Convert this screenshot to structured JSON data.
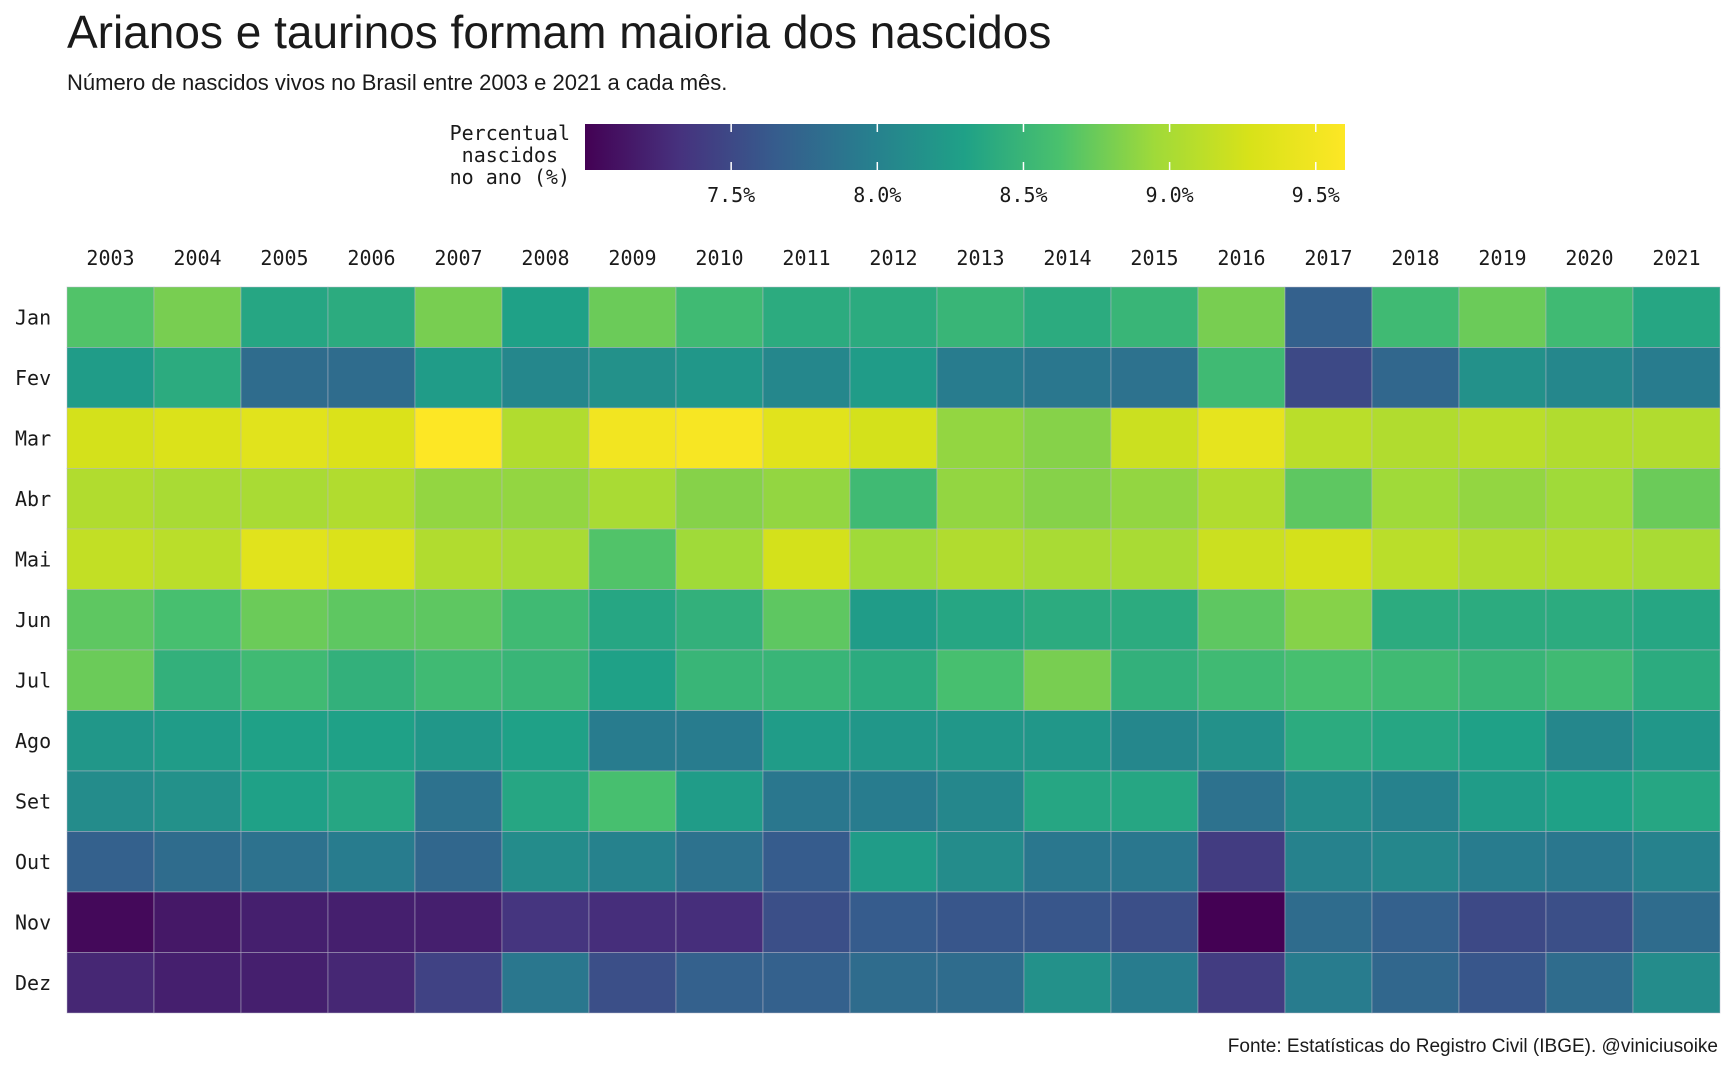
{
  "chart_data": {
    "type": "heatmap",
    "title": "Arianos e taurinos formam maioria dos nascidos",
    "subtitle": "Número de nascidos vivos no Brasil entre 2003 e 2021 a cada mês.",
    "caption": "Fonte: Estatísticas do Registro Civil (IBGE). @viniciusoike",
    "legend": {
      "title_lines": [
        "Percentual",
        "nascidos",
        "no ano (%)"
      ],
      "min": 7.0,
      "max": 9.6,
      "ticks": [
        7.5,
        8.0,
        8.5,
        9.0,
        9.5
      ],
      "tick_labels": [
        "7.5%",
        "8.0%",
        "8.5%",
        "9.0%",
        "9.5%"
      ],
      "placement": "top"
    },
    "colormap": "viridis",
    "x": [
      "2003",
      "2004",
      "2005",
      "2006",
      "2007",
      "2008",
      "2009",
      "2010",
      "2011",
      "2012",
      "2013",
      "2014",
      "2015",
      "2016",
      "2017",
      "2018",
      "2019",
      "2020",
      "2021"
    ],
    "y": [
      "Jan",
      "Fev",
      "Mar",
      "Abr",
      "Mai",
      "Jun",
      "Jul",
      "Ago",
      "Set",
      "Out",
      "Nov",
      "Dez"
    ],
    "values": [
      [
        8.65,
        8.8,
        8.35,
        8.4,
        8.8,
        8.3,
        8.75,
        8.55,
        8.4,
        8.4,
        8.5,
        8.4,
        8.5,
        8.8,
        7.7,
        8.55,
        8.75,
        8.55,
        8.35
      ],
      [
        8.25,
        8.4,
        7.8,
        7.8,
        8.25,
        8.05,
        8.15,
        8.2,
        8.05,
        8.25,
        7.95,
        7.9,
        7.85,
        8.55,
        7.5,
        7.75,
        8.15,
        8.05,
        7.95
      ],
      [
        9.25,
        9.3,
        9.35,
        9.3,
        9.6,
        9.05,
        9.5,
        9.55,
        9.35,
        9.25,
        8.9,
        8.85,
        9.2,
        9.4,
        9.1,
        9.05,
        9.1,
        9.05,
        9.05
      ],
      [
        9.05,
        9.0,
        9.0,
        9.05,
        8.9,
        8.9,
        9.0,
        8.85,
        8.9,
        8.55,
        8.9,
        8.85,
        8.9,
        9.05,
        8.7,
        8.95,
        8.9,
        8.95,
        8.75
      ],
      [
        9.15,
        9.1,
        9.35,
        9.3,
        9.05,
        9.0,
        8.65,
        8.95,
        9.25,
        8.95,
        9.05,
        9.0,
        9.0,
        9.2,
        9.25,
        9.1,
        9.05,
        9.05,
        9.0
      ],
      [
        8.7,
        8.6,
        8.75,
        8.7,
        8.7,
        8.55,
        8.35,
        8.45,
        8.7,
        8.25,
        8.35,
        8.4,
        8.4,
        8.7,
        8.85,
        8.4,
        8.4,
        8.4,
        8.35
      ],
      [
        8.75,
        8.45,
        8.55,
        8.45,
        8.55,
        8.5,
        8.3,
        8.5,
        8.5,
        8.4,
        8.6,
        8.8,
        8.45,
        8.55,
        8.6,
        8.55,
        8.5,
        8.55,
        8.4
      ],
      [
        8.2,
        8.25,
        8.3,
        8.3,
        8.2,
        8.3,
        7.95,
        7.95,
        8.25,
        8.2,
        8.2,
        8.2,
        8.05,
        8.15,
        8.4,
        8.35,
        8.3,
        8.05,
        8.2
      ],
      [
        8.1,
        8.15,
        8.3,
        8.35,
        7.85,
        8.35,
        8.6,
        8.25,
        7.9,
        7.95,
        8.05,
        8.35,
        8.35,
        7.85,
        8.1,
        8.0,
        8.25,
        8.3,
        8.35
      ],
      [
        7.7,
        7.8,
        7.85,
        7.95,
        7.75,
        8.1,
        8.0,
        7.85,
        7.65,
        8.25,
        8.1,
        7.9,
        7.9,
        7.4,
        8.0,
        8.05,
        7.95,
        7.9,
        8.0
      ],
      [
        7.05,
        7.15,
        7.2,
        7.2,
        7.2,
        7.35,
        7.3,
        7.3,
        7.55,
        7.65,
        7.6,
        7.6,
        7.55,
        7.0,
        7.8,
        7.7,
        7.5,
        7.55,
        7.8
      ],
      [
        7.25,
        7.2,
        7.2,
        7.25,
        7.45,
        7.9,
        7.55,
        7.7,
        7.7,
        7.8,
        7.8,
        8.15,
        7.95,
        7.4,
        7.95,
        7.75,
        7.6,
        7.8,
        8.1
      ]
    ]
  }
}
